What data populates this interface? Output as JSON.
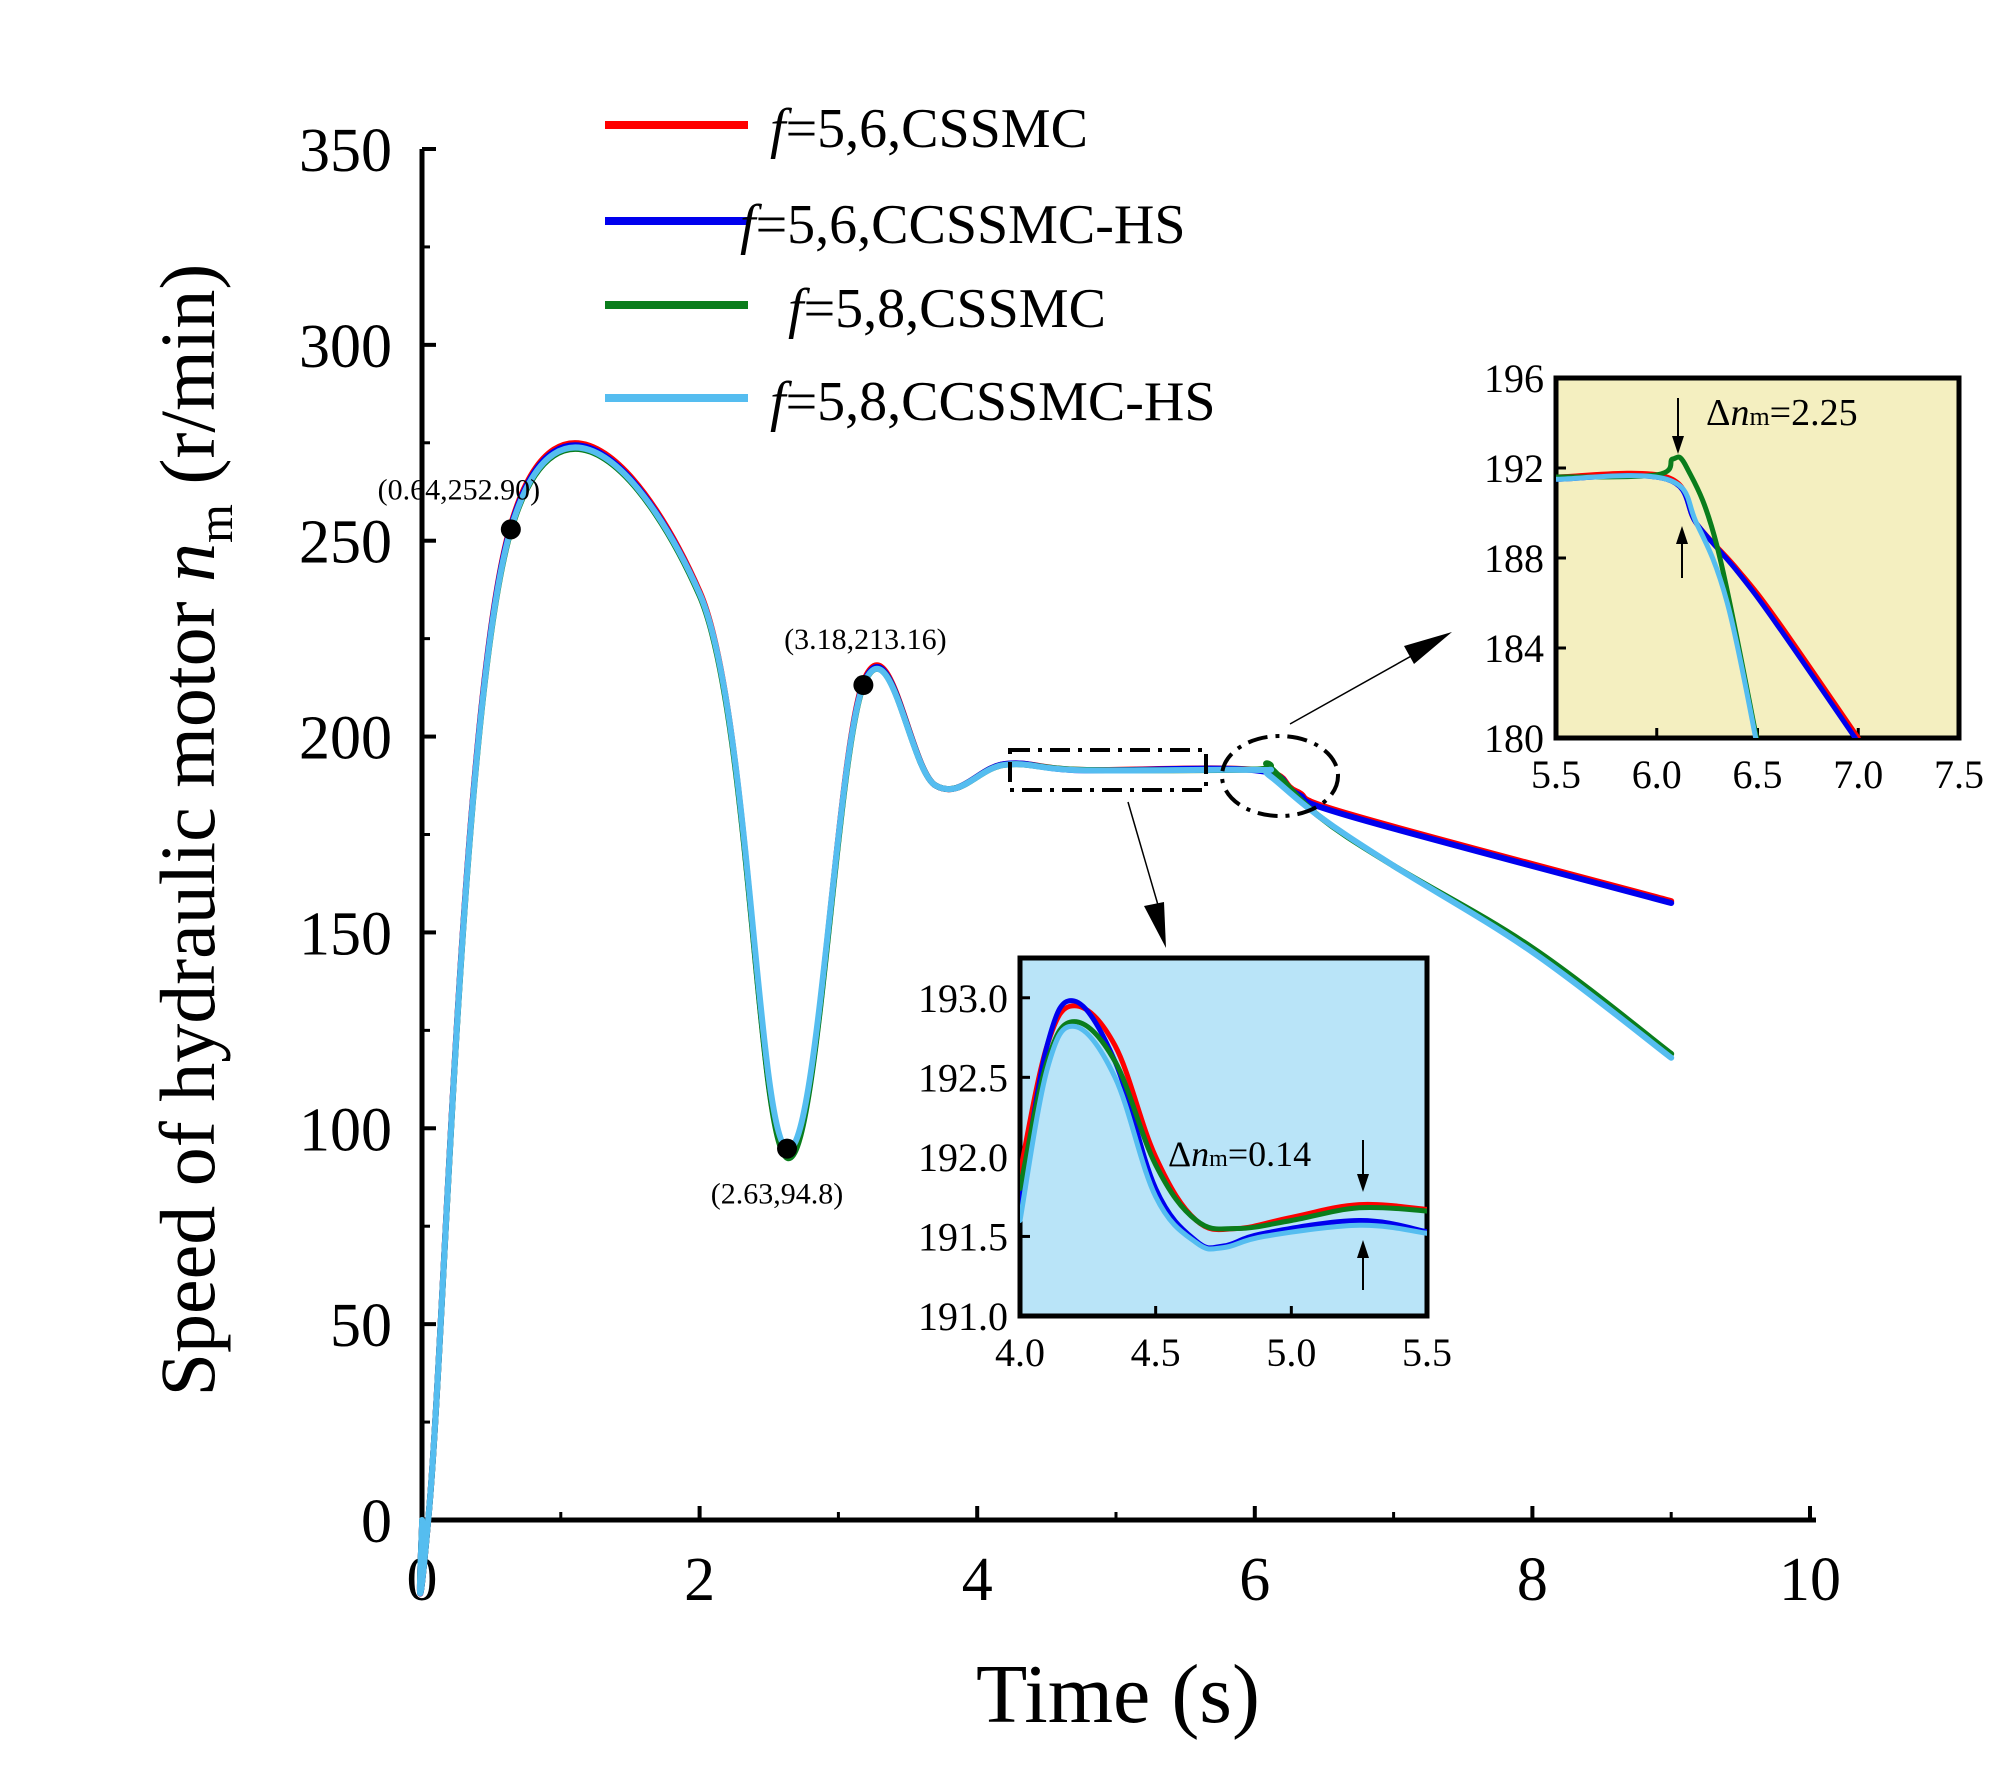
{
  "colors": {
    "red": "#ff0000",
    "blue": "#0000ee",
    "green": "#0a7d1c",
    "light_blue": "#55bdf0",
    "inset_yellow_bg": "#f4efc0",
    "inset_blue_bg": "#b9e4f8"
  },
  "chart_data": [
    {
      "id": "main",
      "type": "line",
      "title": "",
      "xlabel": "Time (s)",
      "ylabel": "Speed of hydraulic  motor n_m (r/min)",
      "ylabel_prefix": "Speed of hydraulic  motor ",
      "ylabel_var": "n",
      "ylabel_sub": "m",
      "ylabel_suffix": " (r/min)",
      "xlim": [
        0,
        10
      ],
      "ylim": [
        0,
        350
      ],
      "xticks": [
        0,
        2,
        4,
        6,
        8,
        10
      ],
      "yticks": [
        0,
        50,
        100,
        150,
        200,
        250,
        300,
        350
      ],
      "x_tick_labels": [
        "0",
        "2",
        "4",
        "6",
        "8",
        "10"
      ],
      "y_tick_labels": [
        "0",
        "50",
        "100",
        "150",
        "200",
        "250",
        "300",
        "350"
      ],
      "legend_position": "top-center",
      "legend": [
        {
          "label": "f=5,6,CSSMC",
          "italic": "f",
          "rest": "=5,6,CSSMC",
          "color_key": "red"
        },
        {
          "label": "f=5,6,CCSSMC-HS",
          "italic": "f",
          "rest": "=5,6,CCSSMC-HS",
          "color_key": "blue"
        },
        {
          "label": "f=5,8,CSSMC",
          "italic": "f",
          "rest": "=5,8,CSSMC",
          "color_key": "green"
        },
        {
          "label": "f=5,8,CCSSMC-HS",
          "italic": "f",
          "rest": "=5,8,CCSSMC-HS",
          "color_key": "light_blue"
        }
      ],
      "series": [
        {
          "name": "f=5,6,CSSMC",
          "color_key": "red",
          "x": [
            0,
            0.05,
            0.64,
            2.0,
            2.63,
            3.18,
            3.7,
            4.2,
            4.75,
            6.0,
            6.3,
            6.7,
            9.0
          ],
          "y": [
            0,
            2,
            254,
            237,
            93,
            214,
            187.5,
            193,
            191.5,
            191.5,
            186,
            180,
            158
          ]
        },
        {
          "name": "f=5,6,CCSSMC-HS",
          "color_key": "blue",
          "x": [
            0,
            0.05,
            0.64,
            2.0,
            2.63,
            3.18,
            3.7,
            4.2,
            4.75,
            6.0,
            6.3,
            6.7,
            9.0
          ],
          "y": [
            0,
            2,
            253.5,
            236.5,
            93,
            213.5,
            187.5,
            193,
            191.4,
            191.4,
            185.5,
            179.5,
            157.5
          ]
        },
        {
          "name": "f=5,8,CSSMC",
          "color_key": "green",
          "x": [
            0,
            0.05,
            0.64,
            2.0,
            2.63,
            3.18,
            3.7,
            4.2,
            4.75,
            6.0,
            6.1,
            6.45,
            7.0,
            8.0,
            9.0
          ],
          "y": [
            0,
            2,
            252.5,
            236,
            92.5,
            213,
            187.5,
            192.8,
            191.5,
            191.6,
            192.4,
            180,
            167,
            146,
            119
          ]
        },
        {
          "name": "f=5,8,CCSSMC-HS",
          "color_key": "light_blue",
          "x": [
            0,
            0.05,
            0.64,
            2.0,
            2.63,
            3.18,
            3.7,
            4.2,
            4.75,
            6.0,
            6.1,
            6.45,
            7.0,
            8.0,
            9.0
          ],
          "y": [
            0,
            2,
            252.9,
            236.5,
            94.8,
            213.16,
            187.5,
            192.8,
            191.4,
            191.5,
            190.2,
            180,
            167,
            145,
            118
          ]
        }
      ],
      "markers": [
        {
          "x": 0.64,
          "y": 252.9,
          "label": "(0.64,252.90)"
        },
        {
          "x": 2.63,
          "y": 94.8,
          "label": "(2.63,94.8)"
        },
        {
          "x": 3.18,
          "y": 213.16,
          "label": "(3.18,213.16)"
        }
      ]
    },
    {
      "id": "inset_top_right",
      "type": "line",
      "title": "",
      "xlim": [
        5.5,
        7.5
      ],
      "ylim": [
        180,
        196
      ],
      "xticks": [
        5.5,
        6.0,
        6.5,
        7.0,
        7.5
      ],
      "yticks": [
        180,
        184,
        188,
        192,
        196
      ],
      "x_tick_labels": [
        "5.5",
        "6.0",
        "6.5",
        "7.0",
        "7.5"
      ],
      "y_tick_labels": [
        "180",
        "184",
        "188",
        "192",
        "196"
      ],
      "annotation": {
        "text": "Δn_m=2.25",
        "prefix": "Δ",
        "var": "n",
        "sub": "m",
        "suffix": "=2.25"
      },
      "series": [
        {
          "name": "f=5,6,CSSMC",
          "color_key": "red",
          "x": [
            5.5,
            6.05,
            6.2,
            6.4,
            6.6,
            7.0
          ],
          "y": [
            191.6,
            191.6,
            189.5,
            187.5,
            185.2,
            180
          ]
        },
        {
          "name": "f=5,6,CCSSMC-HS",
          "color_key": "blue",
          "x": [
            5.5,
            6.05,
            6.2,
            6.4,
            6.6,
            7.0
          ],
          "y": [
            191.5,
            191.5,
            189.5,
            187.4,
            185.0,
            179.8
          ]
        },
        {
          "name": "f=5,8,CSSMC",
          "color_key": "green",
          "x": [
            5.5,
            6.0,
            6.08,
            6.15,
            6.3,
            6.5
          ],
          "y": [
            191.6,
            191.7,
            192.4,
            192.0,
            188.5,
            179.8
          ]
        },
        {
          "name": "f=5,8,CCSSMC-HS",
          "color_key": "light_blue",
          "x": [
            5.5,
            6.05,
            6.2,
            6.35,
            6.5
          ],
          "y": [
            191.5,
            191.5,
            189.5,
            186.0,
            179.6
          ]
        }
      ]
    },
    {
      "id": "inset_bottom",
      "type": "line",
      "title": "",
      "xlim": [
        4.0,
        5.5
      ],
      "ylim": [
        191.0,
        193.25
      ],
      "xticks": [
        4.0,
        4.5,
        5.0,
        5.5
      ],
      "yticks": [
        191.0,
        191.5,
        192.0,
        192.5,
        193.0
      ],
      "x_tick_labels": [
        "4.0",
        "4.5",
        "5.0",
        "5.5"
      ],
      "y_tick_labels": [
        "191.0",
        "191.5",
        "192.0",
        "192.5",
        "193.0"
      ],
      "annotation": {
        "text": "Δn_m=0.14",
        "prefix": "Δ",
        "var": "n",
        "sub": "m",
        "suffix": "=0.14"
      },
      "series": [
        {
          "name": "f=5,6,CSSMC",
          "color_key": "red",
          "x": [
            4.0,
            4.1,
            4.2,
            4.35,
            4.5,
            4.65,
            4.8,
            5.0,
            5.25,
            5.5
          ],
          "y": [
            191.9,
            192.7,
            192.95,
            192.7,
            192.0,
            191.6,
            191.55,
            191.62,
            191.7,
            191.67
          ]
        },
        {
          "name": "f=5,6,CCSSMC-HS",
          "color_key": "blue",
          "x": [
            4.0,
            4.1,
            4.2,
            4.35,
            4.5,
            4.65,
            4.75,
            4.9,
            5.25,
            5.5
          ],
          "y": [
            191.7,
            192.7,
            192.98,
            192.6,
            191.8,
            191.47,
            191.44,
            191.52,
            191.6,
            191.53
          ]
        },
        {
          "name": "f=5,8,CSSMC",
          "color_key": "green",
          "x": [
            4.0,
            4.1,
            4.2,
            4.35,
            4.5,
            4.65,
            4.8,
            5.0,
            5.25,
            5.5
          ],
          "y": [
            191.8,
            192.6,
            192.85,
            192.6,
            191.95,
            191.6,
            191.55,
            191.6,
            191.68,
            191.66
          ]
        },
        {
          "name": "f=5,8,CCSSMC-HS",
          "color_key": "light_blue",
          "x": [
            4.0,
            4.1,
            4.2,
            4.35,
            4.5,
            4.65,
            4.75,
            4.9,
            5.25,
            5.5
          ],
          "y": [
            191.6,
            192.55,
            192.82,
            192.5,
            191.75,
            191.46,
            191.43,
            191.5,
            191.57,
            191.52
          ]
        }
      ]
    }
  ]
}
